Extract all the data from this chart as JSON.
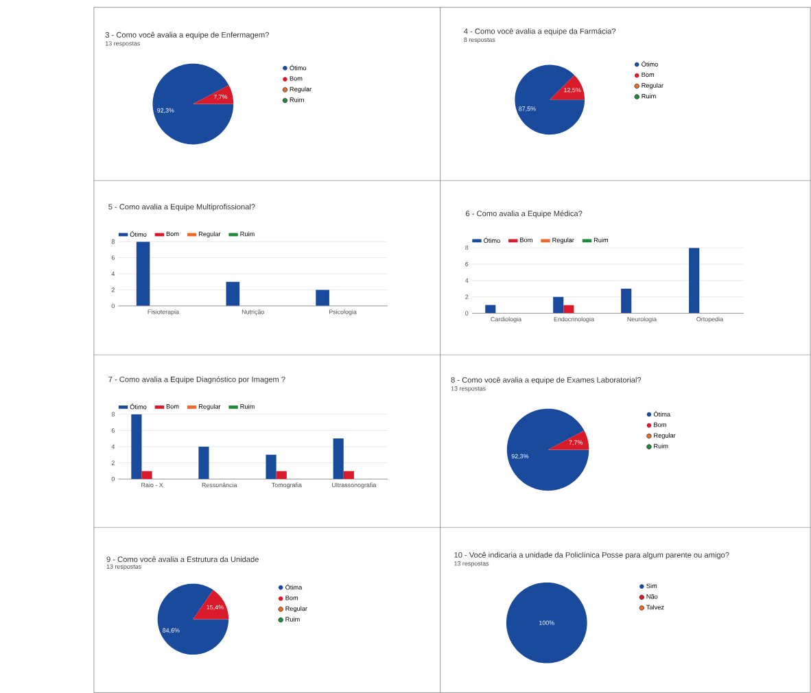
{
  "chart_data": [
    {
      "type": "pie",
      "title": "3 - Como você avalia a equipe de Enfermagem?",
      "subtitle": "13 respostas",
      "categories": [
        "Ótimo",
        "Bom",
        "Regular",
        "Ruim"
      ],
      "values": [
        92.3,
        7.7,
        0,
        0
      ],
      "colors": [
        "#1a4a9c",
        "#d81a2a",
        "#ee6a2a",
        "#1f8a3c"
      ],
      "value_labels": [
        "92,3%",
        "7,7%",
        null,
        null
      ],
      "legend": "right"
    },
    {
      "type": "pie",
      "title": "4 - Como você avalia a equipe da Farmácia?",
      "subtitle": "8 respostas",
      "categories": [
        "Ótimo",
        "Bom",
        "Regular",
        "Ruim"
      ],
      "values": [
        87.5,
        12.5,
        0,
        0
      ],
      "colors": [
        "#1a4a9c",
        "#d81a2a",
        "#ee6a2a",
        "#1f8a3c"
      ],
      "value_labels": [
        "87,5%",
        "12,5%",
        null,
        null
      ],
      "legend": "right"
    },
    {
      "type": "bar",
      "title": "5 - Como avalia a Equipe Multiprofissional?",
      "categories": [
        "Fisioterapia",
        "Nutrição",
        "Psicologia"
      ],
      "series": [
        {
          "name": "Ótimo",
          "color": "#1a4a9c",
          "values": [
            8,
            3,
            2
          ]
        },
        {
          "name": "Bom",
          "color": "#d81a2a",
          "values": [
            0,
            0,
            0
          ]
        },
        {
          "name": "Regular",
          "color": "#ee6a2a",
          "values": [
            0,
            0,
            0
          ]
        },
        {
          "name": "Ruim",
          "color": "#1f8a3c",
          "values": [
            0,
            0,
            0
          ]
        }
      ],
      "ylim": [
        0,
        8
      ],
      "yticks": [
        0,
        2,
        4,
        6,
        8
      ],
      "grid": "y",
      "legend": "top left"
    },
    {
      "type": "bar",
      "title": "6 - Como avalia a Equipe Médica?",
      "categories": [
        "Cardiologia",
        "Endocrinologia",
        "Neurologia",
        "Ortopedia"
      ],
      "series": [
        {
          "name": "Ótimo",
          "color": "#1a4a9c",
          "values": [
            1,
            2,
            3,
            8
          ]
        },
        {
          "name": "Bom",
          "color": "#d81a2a",
          "values": [
            0,
            1,
            0,
            0
          ]
        },
        {
          "name": "Regular",
          "color": "#ee6a2a",
          "values": [
            0,
            0,
            0,
            0
          ]
        },
        {
          "name": "Ruim",
          "color": "#1f8a3c",
          "values": [
            0,
            0,
            0,
            0
          ]
        }
      ],
      "ylim": [
        0,
        8
      ],
      "yticks": [
        0,
        2,
        4,
        6,
        8
      ],
      "grid": "y",
      "legend": "top left"
    },
    {
      "type": "bar",
      "title": "7 - Como avalia a Equipe Diagnóstico por Imagem ?",
      "categories": [
        "Raio - X",
        "Ressonância",
        "Tomografia",
        "Ultrassonografia"
      ],
      "series": [
        {
          "name": "Ótimo",
          "color": "#1a4a9c",
          "values": [
            8,
            4,
            3,
            5
          ]
        },
        {
          "name": "Bom",
          "color": "#d81a2a",
          "values": [
            1,
            0,
            1,
            1
          ]
        },
        {
          "name": "Regular",
          "color": "#ee6a2a",
          "values": [
            0,
            0,
            0,
            0
          ]
        },
        {
          "name": "Ruim",
          "color": "#1f8a3c",
          "values": [
            0,
            0,
            0,
            0
          ]
        }
      ],
      "ylim": [
        0,
        8
      ],
      "yticks": [
        0,
        2,
        4,
        6,
        8
      ],
      "grid": "y",
      "legend": "top left"
    },
    {
      "type": "pie",
      "title": "8 - Como você avalia a equipe de Exames Laboratorial?",
      "subtitle": "13 respostas",
      "categories": [
        "Ótima",
        "Bom",
        "Regular",
        "Ruim"
      ],
      "values": [
        92.3,
        7.7,
        0,
        0
      ],
      "colors": [
        "#1a4a9c",
        "#d81a2a",
        "#ee6a2a",
        "#1f8a3c"
      ],
      "value_labels": [
        "92,3%",
        "7,7%",
        null,
        null
      ],
      "legend": "right"
    },
    {
      "type": "pie",
      "title": "9 - Como você avalia a Estrutura da Unidade",
      "subtitle": "13 respostas",
      "categories": [
        "Ótima",
        "Bom",
        "Regular",
        "Ruim"
      ],
      "values": [
        84.6,
        15.4,
        0,
        0
      ],
      "colors": [
        "#1a4a9c",
        "#d81a2a",
        "#ee6a2a",
        "#1f8a3c"
      ],
      "value_labels": [
        "84,6%",
        "15,4%",
        null,
        null
      ],
      "legend": "right"
    },
    {
      "type": "pie",
      "title": "10 - Você indicaria a unidade da Policlínica Posse para algum parente ou amigo?",
      "subtitle": "13 respostas",
      "categories": [
        "Sim",
        "Não",
        "Talvez"
      ],
      "values": [
        100,
        0,
        0
      ],
      "colors": [
        "#1a4a9c",
        "#d81a2a",
        "#ee6a2a"
      ],
      "value_labels": [
        "100%",
        null,
        null
      ],
      "legend": "right"
    }
  ]
}
